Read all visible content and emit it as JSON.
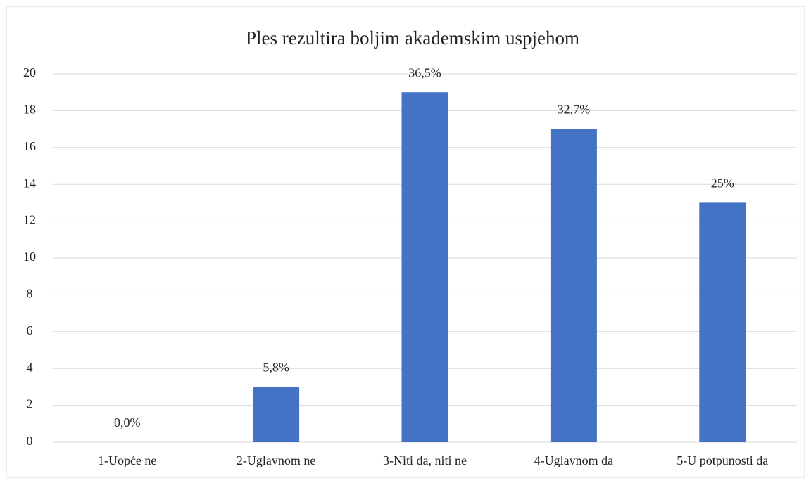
{
  "chart_data": {
    "type": "bar",
    "title": "Ples rezultira boljim akademskim uspjehom",
    "categories": [
      "1-Uopće ne",
      "2-Uglavnom ne",
      "3-Niti da, niti ne",
      "4-Uglavnom da",
      "5-U potpunosti da"
    ],
    "values": [
      0,
      3,
      19,
      17,
      13
    ],
    "annotations": [
      "0,0%",
      "5,8%",
      "36,5%",
      "32,7%",
      "25%"
    ],
    "color": "#4472c4",
    "ylim": [
      0,
      20
    ],
    "yticks": [
      0,
      2,
      4,
      6,
      8,
      10,
      12,
      14,
      16,
      18,
      20
    ],
    "grid": true
  }
}
